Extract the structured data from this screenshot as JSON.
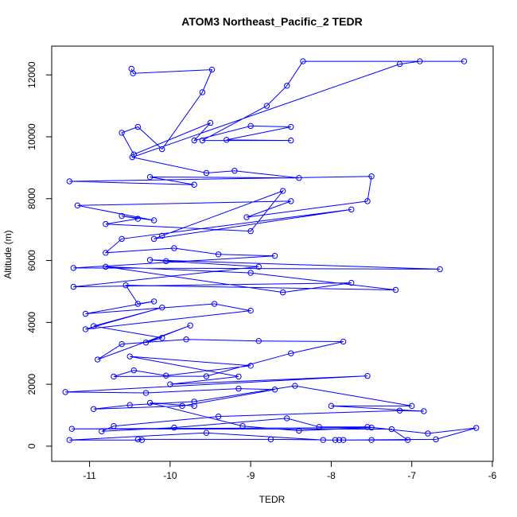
{
  "chart_data": {
    "type": "line",
    "title": "ATOM3 Northeast_Pacific_2 TEDR",
    "xlabel": "TEDR",
    "ylabel": "Altitude (m)",
    "color": "#0000ff",
    "markers": "open-circle",
    "xlim": [
      -11.47,
      -5.99
    ],
    "xticks": [
      -11,
      -10,
      -9,
      -8,
      -7,
      -6
    ],
    "ylim": [
      -490,
      12930
    ],
    "yticks": [
      0,
      2000,
      4000,
      6000,
      8000,
      10000,
      12000
    ],
    "x": [
      -10.48,
      -10.46,
      -9.48,
      -9.6,
      -10.1,
      -10.4,
      -10.6,
      -10.45,
      -9.5,
      -9.7,
      -9.0,
      -8.5,
      -9.3,
      -8.5,
      -9.6,
      -8.8,
      -8.55,
      -8.35,
      -6.35,
      -6.9,
      -7.15,
      -10.47,
      -9.55,
      -9.2,
      -8.4,
      -10.25,
      -9.7,
      -11.25,
      -7.5,
      -7.55,
      -9.05,
      -8.5,
      -11.15,
      -10.2,
      -10.6,
      -10.4,
      -10.8,
      -9.0,
      -8.6,
      -10.1,
      -10.2,
      -7.75,
      -10.6,
      -10.8,
      -9.95,
      -9.4,
      -8.7,
      -11.2,
      -6.65,
      -10.25,
      -10.05,
      -8.9,
      -11.2,
      -7.75,
      -8.6,
      -10.8,
      -9.0,
      -7.2,
      -10.55,
      -10.4,
      -10.2,
      -11.05,
      -9.45,
      -9.0,
      -11.05,
      -10.1,
      -10.95,
      -10.1,
      -10.3,
      -9.75,
      -10.9,
      -10.6,
      -9.8,
      -8.9,
      -7.85,
      -8.5,
      -9.55,
      -10.7,
      -10.45,
      -10.05,
      -9.0,
      -10.5,
      -9.15,
      -10.0,
      -7.55,
      -11.3,
      -10.3,
      -9.15,
      -8.7,
      -9.85,
      -10.95,
      -10.5,
      -9.7,
      -8.45,
      -7.0,
      -8.0,
      -6.85,
      -7.15,
      -9.4,
      -10.7,
      -10.85,
      -9.95,
      -8.55,
      -8.15,
      -7.55,
      -6.8,
      -6.2,
      -6.7,
      -7.85,
      -7.5,
      -7.95,
      -8.75,
      -10.4,
      -10.35,
      -11.25,
      -9.55,
      -8.1,
      -7.9,
      -7.05,
      -7.25,
      -11.22,
      -7.5,
      -8.4,
      -9.1,
      -10.25,
      -9.7
    ],
    "values": [
      12200,
      12050,
      12170,
      11440,
      9600,
      10320,
      10130,
      9430,
      10450,
      9880,
      10350,
      10320,
      9900,
      9880,
      9880,
      11000,
      11650,
      12440,
      12440,
      12440,
      12350,
      9340,
      8830,
      8900,
      8670,
      8700,
      8450,
      8560,
      8720,
      7920,
      7400,
      7920,
      7780,
      7300,
      7440,
      7350,
      7180,
      6950,
      8250,
      6800,
      6700,
      7650,
      6700,
      6250,
      6400,
      6200,
      6150,
      5760,
      5720,
      6020,
      5980,
      5800,
      5150,
      5280,
      4970,
      5800,
      5600,
      5050,
      5200,
      4600,
      4680,
      4280,
      4600,
      4380,
      3780,
      4480,
      3880,
      3500,
      3350,
      3900,
      2800,
      3300,
      3450,
      3400,
      3380,
      3000,
      2260,
      2250,
      2450,
      2280,
      2600,
      2900,
      2250,
      2000,
      2270,
      1750,
      1720,
      1860,
      1830,
      1300,
      1200,
      1330,
      1440,
      1950,
      1300,
      1300,
      1130,
      1150,
      960,
      650,
      480,
      600,
      900,
      620,
      620,
      410,
      590,
      220,
      200,
      200,
      200,
      220,
      220,
      200,
      200,
      430,
      200,
      200,
      200,
      550,
      560,
      600,
      500,
      650,
      1400,
      1300
    ]
  }
}
